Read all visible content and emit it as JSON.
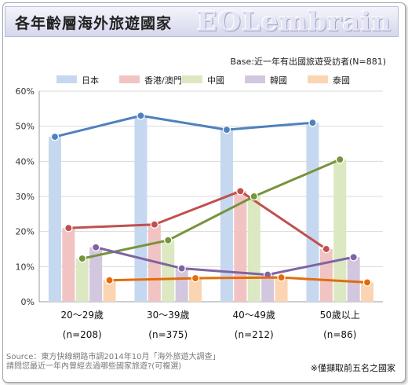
{
  "header": {
    "title": "各年齡層海外旅遊國家",
    "brand": "EOLembrain"
  },
  "base_note": "Base:近一年有出國旅遊受訪者(N=881)",
  "source": {
    "line1": "Source：東方快線網路市調2014年10月「海外旅遊大調查」",
    "line2": "請問您最近一年內曾經去過哪些國家旅遊?(可複選)"
  },
  "footnote": "※僅擷取前五名之國家",
  "chart_data": {
    "type": "bar",
    "overlay": "line",
    "categories": [
      {
        "label": "20～29歲",
        "n": "(n=208)"
      },
      {
        "label": "30～39歲",
        "n": "(n=375)"
      },
      {
        "label": "40～49歲",
        "n": "(n=212)"
      },
      {
        "label": "50歲以上",
        "n": "(n=86)"
      }
    ],
    "y_ticks": [
      "0%",
      "10%",
      "20%",
      "30%",
      "40%",
      "50%",
      "60%"
    ],
    "ylim": [
      0,
      60
    ],
    "grid": true,
    "legend_position": "top",
    "series": [
      {
        "name": "日本",
        "bar_color": "#c6d8f0",
        "line_color": "#4f81bd",
        "values": [
          47,
          53,
          49,
          51
        ]
      },
      {
        "name": "香港/澳門",
        "bar_color": "#f1c4c3",
        "line_color": "#c0504d",
        "values": [
          21,
          22,
          31.5,
          15
        ]
      },
      {
        "name": "中國",
        "bar_color": "#dbe8c2",
        "line_color": "#77933c",
        "values": [
          12.3,
          17.5,
          30,
          40.5
        ]
      },
      {
        "name": "韓國",
        "bar_color": "#d2c7df",
        "line_color": "#7f64a2",
        "values": [
          15.5,
          9.5,
          7.7,
          12.7
        ]
      },
      {
        "name": "泰國",
        "bar_color": "#fbd5b2",
        "line_color": "#e36c09",
        "values": [
          6.1,
          6.7,
          6.9,
          5.5
        ]
      }
    ]
  }
}
